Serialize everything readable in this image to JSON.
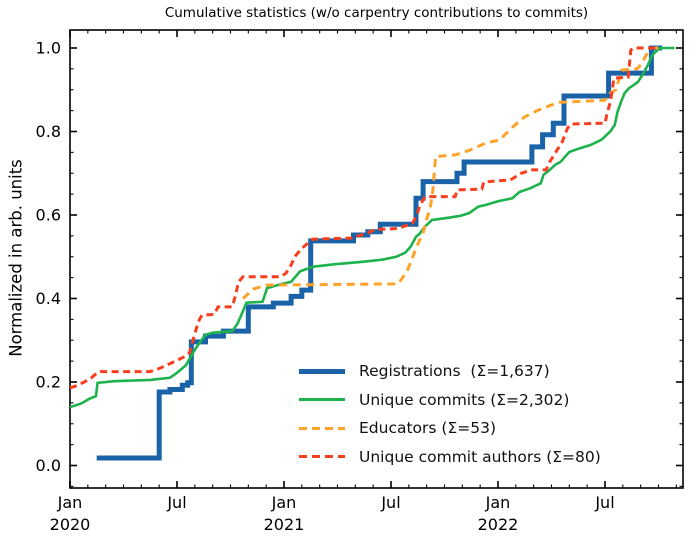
{
  "chart": {
    "title": "Cumulative statistics (w/o carpentry contributions to commits)",
    "ylabel": "Normalized in arb. units"
  },
  "legend": {
    "items": [
      {
        "key": "registrations",
        "label": "Registrations  (Σ=1,637)"
      },
      {
        "key": "unique_commits",
        "label": "Unique commits (Σ=2,302)"
      },
      {
        "key": "educators",
        "label": "Educators (Σ=53)"
      },
      {
        "key": "unique_commit_authors",
        "label": "Unique commit authors (Σ=80)"
      }
    ]
  },
  "chart_data": {
    "type": "line",
    "title": "Cumulative statistics (w/o carpentry contributions to commits)",
    "xlabel": "",
    "ylabel": "Normalized in arb. units",
    "x_unit": "months since Jan 2020",
    "xlim": [
      0,
      34.4
    ],
    "ylim": [
      -0.054,
      1.053
    ],
    "grid": false,
    "legend_position": "lower right inside",
    "x_major_ticks": [
      {
        "m": 0,
        "label": "Jan",
        "year": "2020"
      },
      {
        "m": 6,
        "label": "Jul"
      },
      {
        "m": 12,
        "label": "Jan",
        "year": "2021"
      },
      {
        "m": 18,
        "label": "Jul"
      },
      {
        "m": 24,
        "label": "Jan",
        "year": "2022"
      },
      {
        "m": 30,
        "label": "Jul"
      }
    ],
    "x_minor_step": 1,
    "y_major_ticks": [
      0.0,
      0.2,
      0.4,
      0.6,
      0.8,
      1.0
    ],
    "y_minor_step": 0.05,
    "series": [
      {
        "name": "Registrations",
        "total": 1637,
        "legend": "Registrations  (Σ=1,637)",
        "color": "#1b63a8",
        "width": 5,
        "dash": null,
        "step": true,
        "points": [
          [
            1.5,
            0.018
          ],
          [
            5.0,
            0.018
          ],
          [
            5.0,
            0.176
          ],
          [
            5.6,
            0.182
          ],
          [
            6.3,
            0.192
          ],
          [
            6.6,
            0.198
          ],
          [
            6.8,
            0.198
          ],
          [
            6.8,
            0.296
          ],
          [
            7.6,
            0.31
          ],
          [
            8.6,
            0.322
          ],
          [
            10.0,
            0.325
          ],
          [
            10.0,
            0.38
          ],
          [
            11.4,
            0.389
          ],
          [
            12.4,
            0.405
          ],
          [
            13.0,
            0.42
          ],
          [
            13.5,
            0.42
          ],
          [
            13.5,
            0.538
          ],
          [
            15.9,
            0.538
          ],
          [
            15.9,
            0.552
          ],
          [
            16.7,
            0.56
          ],
          [
            17.4,
            0.578
          ],
          [
            19.4,
            0.578
          ],
          [
            19.4,
            0.64
          ],
          [
            19.8,
            0.68
          ],
          [
            21.7,
            0.68
          ],
          [
            21.7,
            0.7
          ],
          [
            22.1,
            0.727
          ],
          [
            25.9,
            0.727
          ],
          [
            25.9,
            0.763
          ],
          [
            26.5,
            0.792
          ],
          [
            27.1,
            0.82
          ],
          [
            27.7,
            0.82
          ],
          [
            27.7,
            0.885
          ],
          [
            30.2,
            0.885
          ],
          [
            30.2,
            0.94
          ],
          [
            32.6,
            0.94
          ],
          [
            32.6,
            1.0
          ],
          [
            33.2,
            1.0
          ]
        ]
      },
      {
        "name": "Unique commits",
        "total": 2302,
        "legend": "Unique commits (Σ=2,302)",
        "color": "#1db24b",
        "width": 2.6,
        "dash": null,
        "step": false,
        "points": [
          [
            0,
            0.14
          ],
          [
            0.6,
            0.148
          ],
          [
            1.1,
            0.16
          ],
          [
            1.45,
            0.166
          ],
          [
            1.55,
            0.198
          ],
          [
            2.5,
            0.202
          ],
          [
            4.5,
            0.205
          ],
          [
            5.6,
            0.21
          ],
          [
            6.0,
            0.222
          ],
          [
            6.5,
            0.24
          ],
          [
            6.9,
            0.27
          ],
          [
            7.2,
            0.29
          ],
          [
            7.6,
            0.313
          ],
          [
            8.0,
            0.318
          ],
          [
            9.1,
            0.322
          ],
          [
            9.4,
            0.34
          ],
          [
            9.6,
            0.36
          ],
          [
            9.9,
            0.39
          ],
          [
            10.8,
            0.392
          ],
          [
            11.05,
            0.425
          ],
          [
            11.9,
            0.435
          ],
          [
            12.4,
            0.44
          ],
          [
            12.7,
            0.455
          ],
          [
            12.9,
            0.465
          ],
          [
            13.6,
            0.476
          ],
          [
            14.8,
            0.482
          ],
          [
            16.4,
            0.488
          ],
          [
            17.5,
            0.493
          ],
          [
            18.3,
            0.5
          ],
          [
            18.8,
            0.51
          ],
          [
            19.1,
            0.524
          ],
          [
            19.4,
            0.548
          ],
          [
            19.6,
            0.555
          ],
          [
            19.9,
            0.572
          ],
          [
            20.3,
            0.588
          ],
          [
            21.0,
            0.592
          ],
          [
            21.9,
            0.598
          ],
          [
            22.4,
            0.605
          ],
          [
            22.9,
            0.62
          ],
          [
            23.3,
            0.624
          ],
          [
            24.0,
            0.633
          ],
          [
            24.8,
            0.64
          ],
          [
            25.2,
            0.655
          ],
          [
            25.8,
            0.664
          ],
          [
            26.4,
            0.676
          ],
          [
            26.55,
            0.696
          ],
          [
            26.9,
            0.708
          ],
          [
            27.2,
            0.72
          ],
          [
            27.5,
            0.727
          ],
          [
            28.0,
            0.751
          ],
          [
            28.6,
            0.76
          ],
          [
            29.2,
            0.768
          ],
          [
            29.8,
            0.78
          ],
          [
            30.3,
            0.8
          ],
          [
            30.55,
            0.816
          ],
          [
            30.7,
            0.847
          ],
          [
            30.9,
            0.871
          ],
          [
            31.1,
            0.892
          ],
          [
            31.35,
            0.904
          ],
          [
            31.6,
            0.911
          ],
          [
            31.85,
            0.919
          ],
          [
            32.1,
            0.935
          ],
          [
            32.4,
            0.959
          ],
          [
            32.65,
            0.983
          ],
          [
            32.95,
            0.995
          ],
          [
            33.1,
            1.0
          ],
          [
            33.9,
            1.0
          ]
        ]
      },
      {
        "name": "Educators",
        "total": 53,
        "legend": "Educators (Σ=53)",
        "color": "#ffa229",
        "width": 3,
        "dash": "8 5.5",
        "step": false,
        "points": [
          [
            9.7,
            0.4
          ],
          [
            10.3,
            0.423
          ],
          [
            11.0,
            0.432
          ],
          [
            18.4,
            0.435
          ],
          [
            18.9,
            0.465
          ],
          [
            19.2,
            0.497
          ],
          [
            19.5,
            0.53
          ],
          [
            19.8,
            0.557
          ],
          [
            20.0,
            0.59
          ],
          [
            20.2,
            0.617
          ],
          [
            20.35,
            0.66
          ],
          [
            20.5,
            0.74
          ],
          [
            21.6,
            0.744
          ],
          [
            22.4,
            0.755
          ],
          [
            23.3,
            0.772
          ],
          [
            24.1,
            0.78
          ],
          [
            24.8,
            0.81
          ],
          [
            25.5,
            0.835
          ],
          [
            26.2,
            0.85
          ],
          [
            26.9,
            0.862
          ],
          [
            27.5,
            0.87
          ],
          [
            30.0,
            0.875
          ],
          [
            30.3,
            0.892
          ],
          [
            30.6,
            0.9
          ],
          [
            30.95,
            0.947
          ],
          [
            31.8,
            0.95
          ],
          [
            32.05,
            0.962
          ],
          [
            32.4,
            0.99
          ],
          [
            32.6,
            1.0
          ],
          [
            33.2,
            1.0
          ]
        ]
      },
      {
        "name": "Unique commit authors",
        "total": 80,
        "legend": "Unique commit authors (Σ=80)",
        "color": "#f93e1d",
        "width": 3,
        "dash": "7 4.5",
        "step": false,
        "points": [
          [
            0,
            0.186
          ],
          [
            0.3,
            0.19
          ],
          [
            0.8,
            0.2
          ],
          [
            1.2,
            0.21
          ],
          [
            1.5,
            0.221
          ],
          [
            1.7,
            0.225
          ],
          [
            4.5,
            0.225
          ],
          [
            4.8,
            0.229
          ],
          [
            5.2,
            0.236
          ],
          [
            5.8,
            0.248
          ],
          [
            6.4,
            0.26
          ],
          [
            6.7,
            0.27
          ],
          [
            6.9,
            0.3
          ],
          [
            7.1,
            0.33
          ],
          [
            7.25,
            0.349
          ],
          [
            7.4,
            0.36
          ],
          [
            8.1,
            0.362
          ],
          [
            8.3,
            0.38
          ],
          [
            9.1,
            0.38
          ],
          [
            9.3,
            0.41
          ],
          [
            9.45,
            0.44
          ],
          [
            9.7,
            0.452
          ],
          [
            11.8,
            0.452
          ],
          [
            12.1,
            0.46
          ],
          [
            12.4,
            0.48
          ],
          [
            12.6,
            0.5
          ],
          [
            13.0,
            0.52
          ],
          [
            13.4,
            0.535
          ],
          [
            13.6,
            0.542
          ],
          [
            15.8,
            0.545
          ],
          [
            16.7,
            0.557
          ],
          [
            17.1,
            0.565
          ],
          [
            18.4,
            0.568
          ],
          [
            19.2,
            0.58
          ],
          [
            19.45,
            0.6
          ],
          [
            19.6,
            0.62
          ],
          [
            19.9,
            0.644
          ],
          [
            21.6,
            0.644
          ],
          [
            21.7,
            0.66
          ],
          [
            23.1,
            0.662
          ],
          [
            23.2,
            0.679
          ],
          [
            24.7,
            0.684
          ],
          [
            25.3,
            0.7
          ],
          [
            25.9,
            0.708
          ],
          [
            26.7,
            0.708
          ],
          [
            26.9,
            0.727
          ],
          [
            27.2,
            0.748
          ],
          [
            27.6,
            0.775
          ],
          [
            27.9,
            0.808
          ],
          [
            28.1,
            0.818
          ],
          [
            30.0,
            0.82
          ],
          [
            30.1,
            0.84
          ],
          [
            30.3,
            0.871
          ],
          [
            30.4,
            0.895
          ],
          [
            30.5,
            0.928
          ],
          [
            31.3,
            0.93
          ],
          [
            31.45,
            0.995
          ],
          [
            31.6,
            1.0
          ],
          [
            33.0,
            1.0
          ]
        ]
      }
    ]
  }
}
